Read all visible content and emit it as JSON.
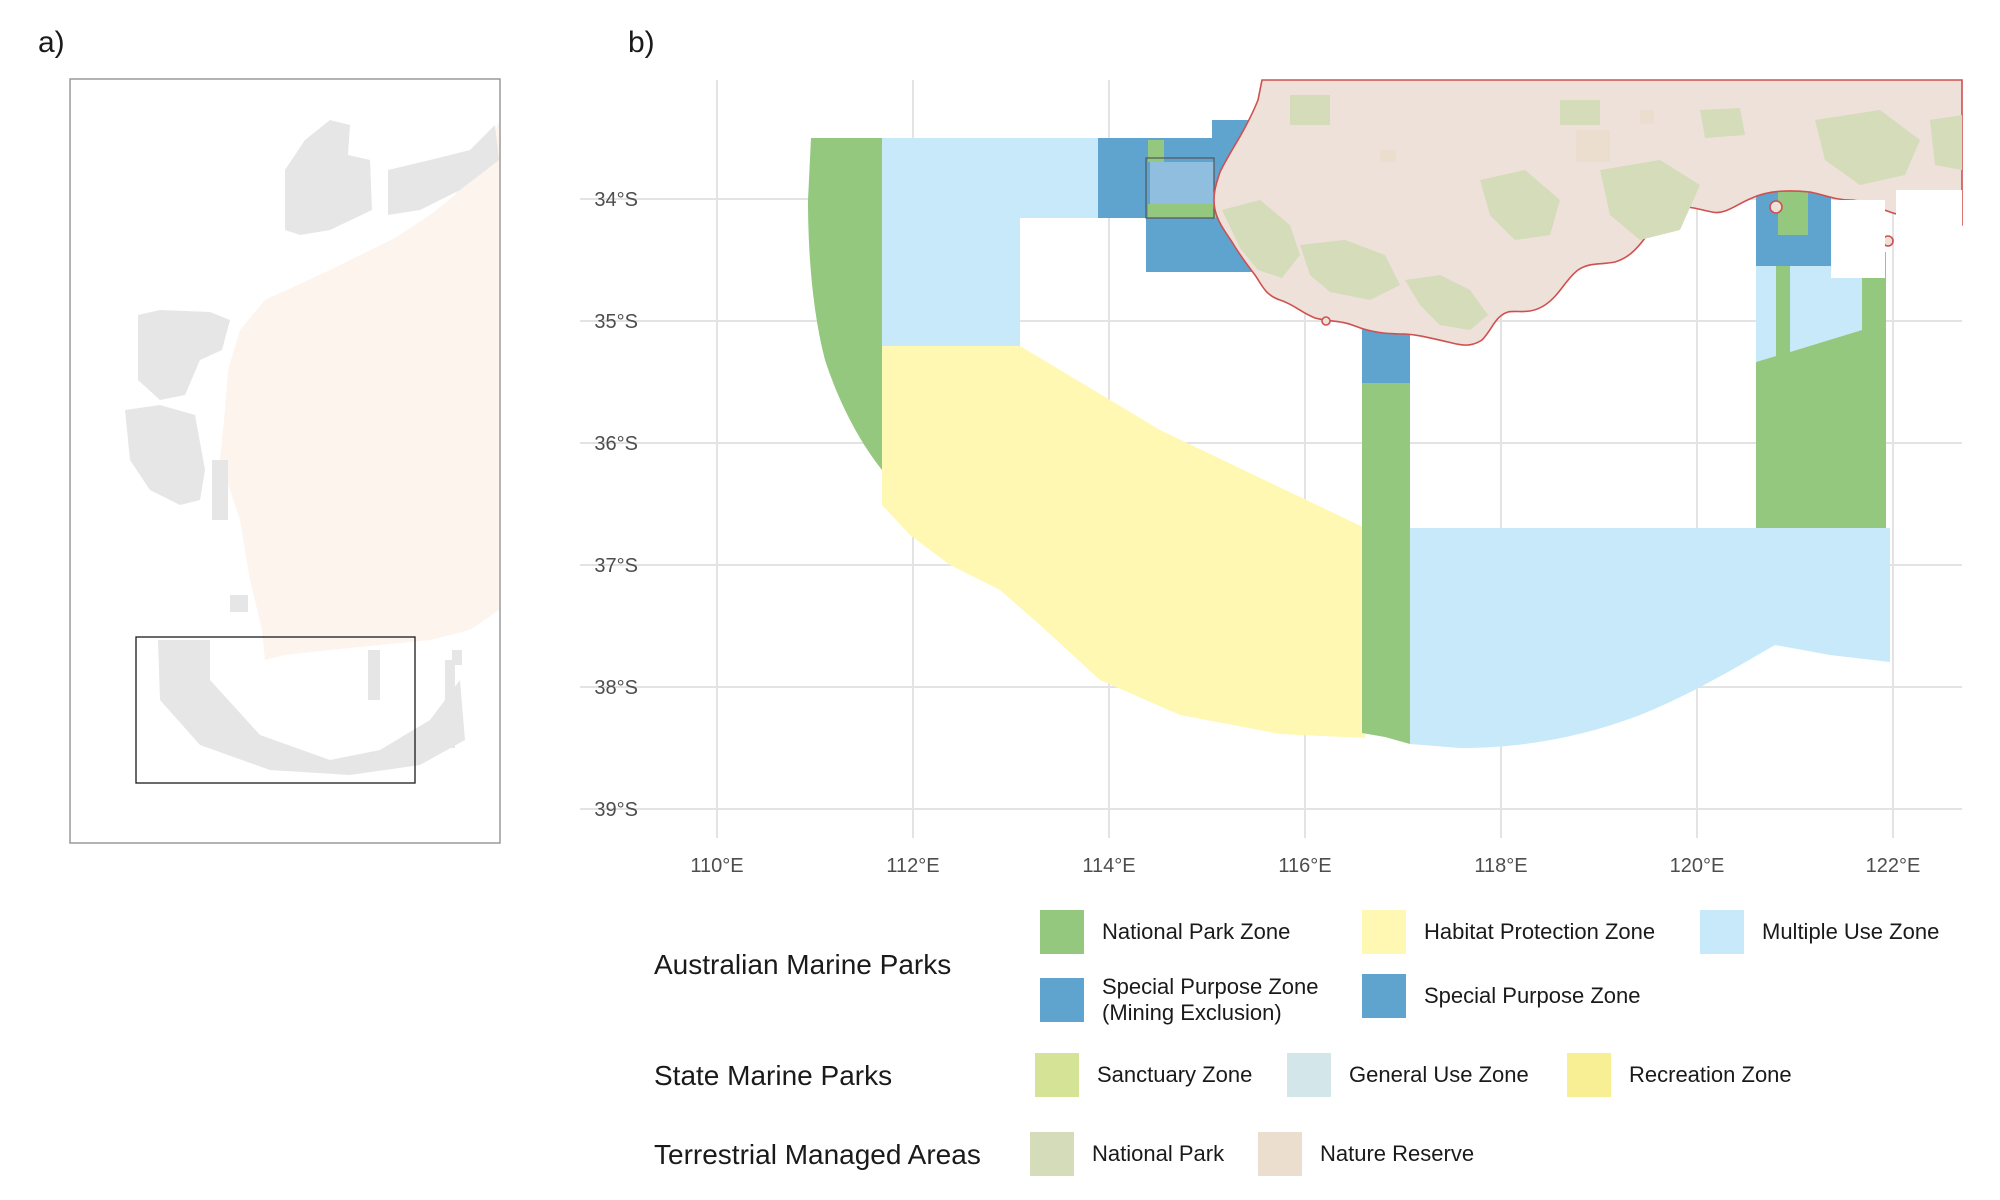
{
  "panels": {
    "a": "a)",
    "b": "b)"
  },
  "axes": {
    "x_ticks": [
      "110°E",
      "112°E",
      "114°E",
      "116°E",
      "118°E",
      "120°E",
      "122°E"
    ],
    "y_ticks": [
      "34°S",
      "35°S",
      "36°S",
      "37°S",
      "38°S",
      "39°S"
    ]
  },
  "colors": {
    "national_park_zone": "#93c87e",
    "habitat_protection_zone": "#fff8b3",
    "multiple_use_zone": "#c7e9fa",
    "special_purpose_zone": "#5fa3cf",
    "sanctuary_zone": "#d4e396",
    "general_use_zone": "#d3e7ea",
    "recreation_zone": "#f8ef94",
    "national_park": "#d4dcba",
    "nature_reserve": "#ecdece",
    "land": "#ede1d9",
    "coast_line": "#d05050",
    "inset_land": "#fdf4ee",
    "inset_parks": "#e6e6e6"
  },
  "legend": {
    "groups": [
      {
        "title": "Australian Marine Parks",
        "items": [
          {
            "label": "National Park Zone",
            "color": "#93c87e"
          },
          {
            "label": "Habitat Protection Zone",
            "color": "#fff8b3"
          },
          {
            "label": "Multiple Use Zone",
            "color": "#c7e9fa"
          },
          {
            "label": "Special Purpose Zone\n(Mining Exclusion)",
            "color": "#5fa3cf"
          },
          {
            "label": "Special Purpose Zone",
            "color": "#5fa3cf"
          }
        ]
      },
      {
        "title": "State Marine Parks",
        "items": [
          {
            "label": "Sanctuary Zone",
            "color": "#d4e396"
          },
          {
            "label": "General Use Zone",
            "color": "#d3e7ea"
          },
          {
            "label": "Recreation Zone",
            "color": "#f8ef94"
          }
        ]
      },
      {
        "title": "Terrestrial Managed Areas",
        "items": [
          {
            "label": "National Park",
            "color": "#d4dcba"
          },
          {
            "label": "Nature Reserve",
            "color": "#ecdece"
          }
        ]
      }
    ]
  }
}
